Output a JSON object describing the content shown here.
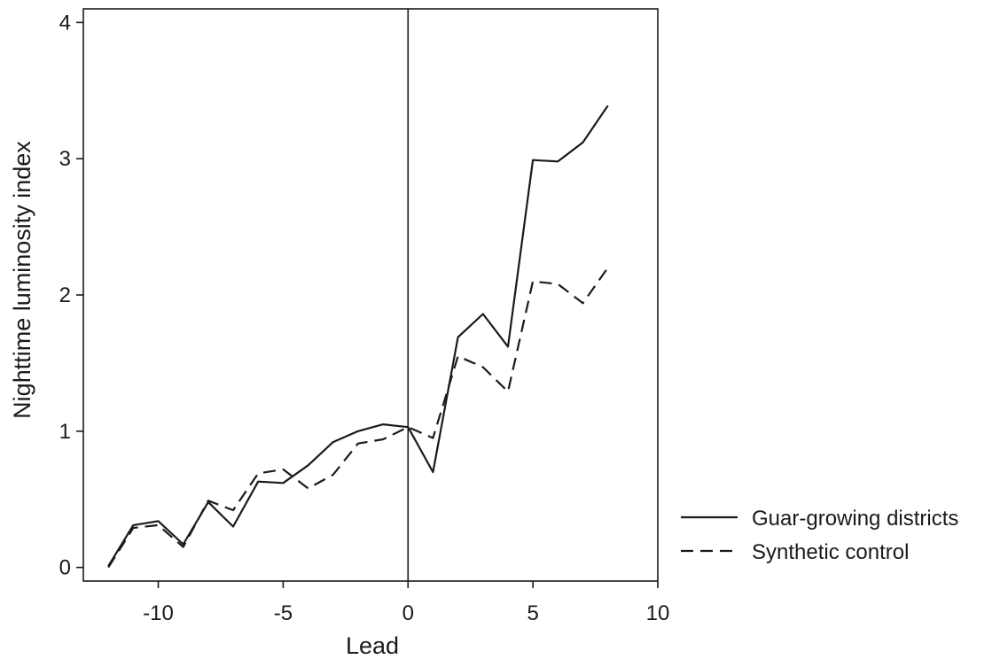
{
  "chart_data": {
    "type": "line",
    "xlabel": "Lead",
    "ylabel": "Nighttime luminosity index",
    "xlim": [
      -13,
      10
    ],
    "ylim": [
      -0.1,
      4.1
    ],
    "xticks": [
      -10,
      -5,
      0,
      5,
      10
    ],
    "yticks": [
      0,
      1,
      2,
      3,
      4
    ],
    "xtick_labels": [
      "-10",
      "-5",
      "0",
      "5",
      "10"
    ],
    "ytick_labels": [
      "0",
      "1",
      "2",
      "3",
      "4"
    ],
    "reference_line_x": 0,
    "grid": false,
    "legend_position": "right",
    "x": [
      -12,
      -11,
      -10,
      -9,
      -8,
      -7,
      -6,
      -5,
      -4,
      -3,
      -2,
      -1,
      0,
      1,
      2,
      3,
      4,
      5,
      6,
      7,
      8
    ],
    "series": [
      {
        "name": "Guar-growing districts",
        "style": "solid",
        "values": [
          0.01,
          0.31,
          0.34,
          0.17,
          0.48,
          0.3,
          0.63,
          0.62,
          0.75,
          0.92,
          1.0,
          1.05,
          1.03,
          0.7,
          1.69,
          1.86,
          1.62,
          2.99,
          2.98,
          3.12,
          3.39
        ]
      },
      {
        "name": "Synthetic control",
        "style": "dashed",
        "values": [
          0.0,
          0.29,
          0.31,
          0.15,
          0.49,
          0.42,
          0.69,
          0.72,
          0.58,
          0.68,
          0.91,
          0.94,
          1.03,
          0.95,
          1.55,
          1.47,
          1.29,
          2.1,
          2.08,
          1.94,
          2.2
        ]
      }
    ]
  },
  "colors": {
    "line": "#1a1a1a",
    "frame": "#1a1a1a",
    "background": "#ffffff"
  }
}
